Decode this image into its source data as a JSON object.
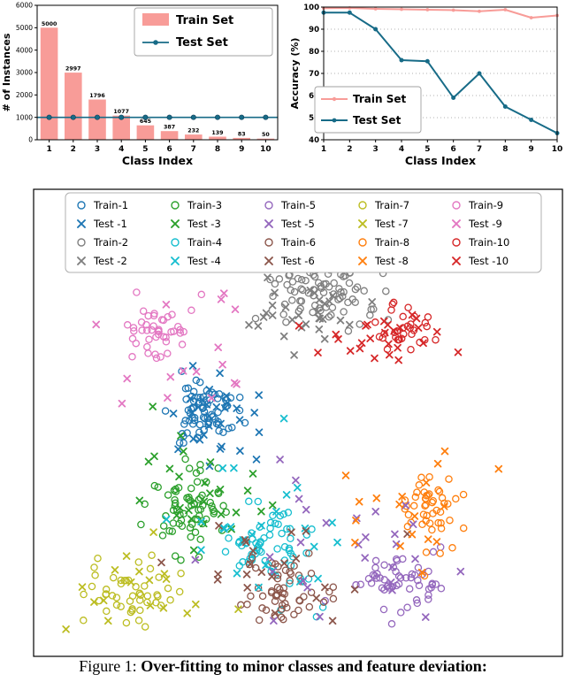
{
  "figure": {
    "caption_prefix": "Figure 1: ",
    "caption_bold": "Over-fitting to minor classes and feature deviation:"
  },
  "colors": {
    "train": "#f89c98",
    "test": "#176b87",
    "grid": "#999999",
    "axis": "#000000"
  },
  "chart_data": [
    {
      "type": "bar",
      "name": "class-distribution",
      "xlabel": "Class Index",
      "ylabel": "# of Instances",
      "categories": [
        "1",
        "2",
        "3",
        "4",
        "5",
        "6",
        "7",
        "8",
        "9",
        "10"
      ],
      "series": [
        {
          "name": "Train Set",
          "type": "bar",
          "values": [
            5000,
            2997,
            1796,
            1077,
            645,
            387,
            232,
            139,
            83,
            50
          ]
        },
        {
          "name": "Test Set",
          "type": "line",
          "values": [
            1000,
            1000,
            1000,
            1000,
            1000,
            1000,
            1000,
            1000,
            1000,
            1000
          ]
        }
      ],
      "bar_labels": [
        "5000",
        "2997",
        "1796",
        "1077",
        "645",
        "387",
        "232",
        "139",
        "83",
        "50"
      ],
      "ylim": [
        0,
        6000
      ],
      "yticks": [
        0,
        1000,
        2000,
        3000,
        4000,
        5000,
        6000
      ],
      "legend_position": "upper right"
    },
    {
      "type": "line",
      "name": "per-class-accuracy",
      "xlabel": "Class Index",
      "ylabel": "Accuracy (%)",
      "x": [
        "1",
        "2",
        "3",
        "4",
        "5",
        "6",
        "7",
        "8",
        "9",
        "10"
      ],
      "series": [
        {
          "name": "Train Set",
          "values": [
            99.5,
            99.6,
            99.2,
            99.0,
            98.8,
            98.6,
            98.1,
            98.8,
            95.2,
            96.2
          ]
        },
        {
          "name": "Test Set",
          "values": [
            97.5,
            97.5,
            90.0,
            76.0,
            75.5,
            59.0,
            70.0,
            55.0,
            49.0,
            43.0
          ]
        }
      ],
      "ylim": [
        40,
        100
      ],
      "yticks": [
        40,
        50,
        60,
        70,
        80,
        90,
        100
      ],
      "grid": "dotted-horizontal",
      "legend_position": "center-left"
    },
    {
      "type": "scatter",
      "name": "feature-embedding",
      "marker_train": "open-circle",
      "marker_test": "x",
      "seed": 11,
      "classes": [
        {
          "id": 1,
          "color": "#1f77b4",
          "train_label": "Train-1",
          "test_label": "Test -1",
          "train": {
            "cx": 0.325,
            "cy": 0.475,
            "sx": 0.032,
            "sy": 0.03,
            "n": 70
          },
          "test": {
            "cx": 0.335,
            "cy": 0.495,
            "sx": 0.055,
            "sy": 0.052,
            "n": 30
          }
        },
        {
          "id": 2,
          "color": "#7f7f7f",
          "train_label": "Train-2",
          "test_label": "Test -2",
          "train": {
            "cx": 0.54,
            "cy": 0.215,
            "sx": 0.045,
            "sy": 0.036,
            "n": 85
          },
          "test": {
            "cx": 0.52,
            "cy": 0.27,
            "sx": 0.06,
            "sy": 0.035,
            "n": 30
          }
        },
        {
          "id": 3,
          "color": "#2ca02c",
          "train_label": "Train-3",
          "test_label": "Test -3",
          "train": {
            "cx": 0.29,
            "cy": 0.68,
            "sx": 0.035,
            "sy": 0.05,
            "n": 70
          },
          "test": {
            "cx": 0.3,
            "cy": 0.64,
            "sx": 0.06,
            "sy": 0.068,
            "n": 26
          }
        },
        {
          "id": 4,
          "color": "#17becf",
          "train_label": "Train-4",
          "test_label": "Test -4",
          "train": {
            "cx": 0.452,
            "cy": 0.76,
            "sx": 0.04,
            "sy": 0.045,
            "n": 62
          },
          "test": {
            "cx": 0.43,
            "cy": 0.725,
            "sx": 0.08,
            "sy": 0.075,
            "n": 26
          }
        },
        {
          "id": 5,
          "color": "#9467bd",
          "train_label": "Train-5",
          "test_label": "Test -5",
          "train": {
            "cx": 0.69,
            "cy": 0.835,
            "sx": 0.04,
            "sy": 0.032,
            "n": 55
          },
          "test": {
            "cx": 0.6,
            "cy": 0.78,
            "sx": 0.11,
            "sy": 0.085,
            "n": 28
          }
        },
        {
          "id": 6,
          "color": "#8c564b",
          "train_label": "Train-6",
          "test_label": "Test -6",
          "train": {
            "cx": 0.47,
            "cy": 0.868,
            "sx": 0.038,
            "sy": 0.035,
            "n": 55
          },
          "test": {
            "cx": 0.47,
            "cy": 0.815,
            "sx": 0.09,
            "sy": 0.065,
            "n": 22
          }
        },
        {
          "id": 7,
          "color": "#bcbd22",
          "train_label": "Train-7",
          "test_label": "Test -7",
          "train": {
            "cx": 0.187,
            "cy": 0.875,
            "sx": 0.045,
            "sy": 0.035,
            "n": 50
          },
          "test": {
            "cx": 0.23,
            "cy": 0.855,
            "sx": 0.07,
            "sy": 0.05,
            "n": 18
          }
        },
        {
          "id": 8,
          "color": "#ff7f0e",
          "train_label": "Train-8",
          "test_label": "Test -8",
          "train": {
            "cx": 0.752,
            "cy": 0.695,
            "sx": 0.032,
            "sy": 0.042,
            "n": 48
          },
          "test": {
            "cx": 0.69,
            "cy": 0.7,
            "sx": 0.09,
            "sy": 0.08,
            "n": 18
          }
        },
        {
          "id": 9,
          "color": "#e377c2",
          "train_label": "Train-9",
          "test_label": "Test -9",
          "train": {
            "cx": 0.237,
            "cy": 0.305,
            "sx": 0.035,
            "sy": 0.04,
            "n": 45
          },
          "test": {
            "cx": 0.3,
            "cy": 0.4,
            "sx": 0.09,
            "sy": 0.09,
            "n": 16
          }
        },
        {
          "id": 10,
          "color": "#d62728",
          "train_label": "Train-10",
          "test_label": "Test -10",
          "train": {
            "cx": 0.7,
            "cy": 0.305,
            "sx": 0.03,
            "sy": 0.027,
            "n": 32
          },
          "test": {
            "cx": 0.622,
            "cy": 0.32,
            "sx": 0.08,
            "sy": 0.035,
            "n": 26
          }
        }
      ]
    }
  ]
}
